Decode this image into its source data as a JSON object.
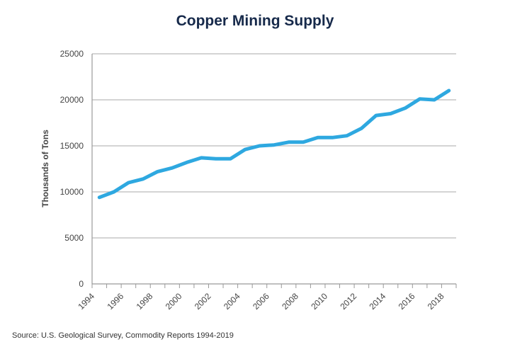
{
  "chart_data": {
    "type": "line",
    "title": "Copper Mining Supply",
    "ylabel": "Thousands of Tons",
    "xlabel": "",
    "source": "Source: U.S. Geological Survey, Commodity Reports 1994-2019",
    "x": [
      1994,
      1995,
      1996,
      1997,
      1998,
      1999,
      2000,
      2001,
      2002,
      2003,
      2004,
      2005,
      2006,
      2007,
      2008,
      2009,
      2010,
      2011,
      2012,
      2013,
      2014,
      2015,
      2016,
      2017,
      2018
    ],
    "values": [
      9400,
      10000,
      11000,
      11400,
      12200,
      12600,
      13200,
      13700,
      13600,
      13600,
      14600,
      15000,
      15100,
      15400,
      15400,
      15900,
      15900,
      16100,
      16900,
      18300,
      18500,
      19100,
      20100,
      20000,
      21000
    ],
    "x_tick_labels": [
      "1994",
      "1996",
      "1998",
      "2000",
      "2002",
      "2004",
      "2006",
      "2008",
      "2010",
      "2012",
      "2014",
      "2016",
      "2018"
    ],
    "y_tick_labels": [
      "0",
      "5000",
      "10000",
      "15000",
      "20000",
      "25000"
    ],
    "ylim": [
      0,
      25000
    ],
    "grid": true,
    "line_color": "#2ea8e0"
  }
}
